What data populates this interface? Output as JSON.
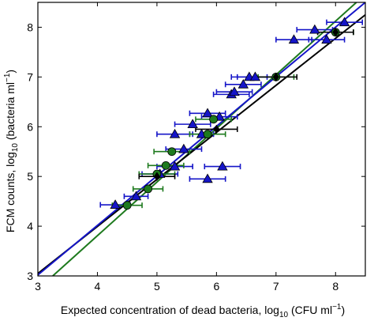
{
  "chart_data": {
    "type": "scatter",
    "xlabel": {
      "main": "Expected concentration of dead bacteria, log",
      "sub": "10",
      "tail": " (CFU ml",
      "sup": "−1",
      "end": ")"
    },
    "ylabel": {
      "main": "FCM counts, log",
      "sub": "10",
      "tail": " (bacteria ml",
      "sup": "−1",
      "end": ")"
    },
    "xlim": [
      3,
      8.5
    ],
    "ylim": [
      3,
      8.5
    ],
    "x_ticks": [
      "3",
      "4",
      "5",
      "6",
      "7",
      "8"
    ],
    "y_ticks": [
      "3",
      "4",
      "5",
      "6",
      "7",
      "8"
    ],
    "grid": false,
    "series": [
      {
        "marker": "triangle",
        "color": "#1515c8",
        "points": [
          {
            "x": 4.3,
            "y": 4.43,
            "xerr": 0.25
          },
          {
            "x": 4.65,
            "y": 4.6,
            "xerr": 0.2
          },
          {
            "x": 5.05,
            "y": 5.05,
            "xerr": 0.3
          },
          {
            "x": 5.3,
            "y": 5.2,
            "xerr": 0.3
          },
          {
            "x": 5.3,
            "y": 5.85,
            "xerr": 0.3
          },
          {
            "x": 5.45,
            "y": 5.55,
            "xerr": 0.3
          },
          {
            "x": 5.6,
            "y": 6.05,
            "xerr": 0.3
          },
          {
            "x": 5.75,
            "y": 5.85,
            "xerr": 0.2
          },
          {
            "x": 5.85,
            "y": 6.27,
            "xerr": 0.3
          },
          {
            "x": 5.85,
            "y": 4.95,
            "xerr": 0.3
          },
          {
            "x": 6.05,
            "y": 6.2,
            "xerr": 0.3
          },
          {
            "x": 6.1,
            "y": 5.2,
            "xerr": 0.3
          },
          {
            "x": 6.25,
            "y": 6.65,
            "xerr": 0.3
          },
          {
            "x": 6.3,
            "y": 6.7,
            "xerr": 0.3
          },
          {
            "x": 6.45,
            "y": 6.85,
            "xerr": 0.3
          },
          {
            "x": 6.55,
            "y": 7.0,
            "xerr": 0.3
          },
          {
            "x": 6.65,
            "y": 7.0,
            "xerr": 0.3
          },
          {
            "x": 7.3,
            "y": 7.75,
            "xerr": 0.3
          },
          {
            "x": 7.65,
            "y": 7.95,
            "xerr": 0.3
          },
          {
            "x": 7.85,
            "y": 7.75,
            "xerr": 0.3
          },
          {
            "x": 8.15,
            "y": 8.1,
            "xerr": 0.3
          }
        ]
      },
      {
        "marker": "circle",
        "color": "#1e7a1e",
        "points": [
          {
            "x": 4.5,
            "y": 4.42,
            "xerr": 0.25
          },
          {
            "x": 4.85,
            "y": 4.75,
            "xerr": 0.25
          },
          {
            "x": 5.0,
            "y": 5.05,
            "xerr": 0.3
          },
          {
            "x": 5.15,
            "y": 5.22,
            "xerr": 0.3
          },
          {
            "x": 5.25,
            "y": 5.5,
            "xerr": 0.3
          },
          {
            "x": 5.85,
            "y": 5.85,
            "xerr": 0.3
          },
          {
            "x": 5.95,
            "y": 6.15,
            "xerr": 0.3
          },
          {
            "x": 7.0,
            "y": 7.0,
            "xerr": 0.3
          },
          {
            "x": 8.0,
            "y": 7.9,
            "xerr": 0.3
          }
        ]
      },
      {
        "marker": "diamond",
        "color": "#000000",
        "points": [
          {
            "x": 5.0,
            "y": 5.0,
            "xerr": 0.3
          },
          {
            "x": 6.0,
            "y": 5.95,
            "xerr": 0.35
          },
          {
            "x": 7.0,
            "y": 7.0,
            "xerr": 0.35
          },
          {
            "x": 8.0,
            "y": 7.9,
            "xerr": 0.3
          }
        ]
      }
    ],
    "fit_lines": [
      {
        "color": "#1e7a1e",
        "x": [
          3.25,
          8.35
        ],
        "y": [
          3.0,
          8.5
        ]
      },
      {
        "color": "#000000",
        "x": [
          3.0,
          8.5
        ],
        "y": [
          3.05,
          8.25
        ]
      },
      {
        "color": "#1515c8",
        "x": [
          3.0,
          8.5
        ],
        "y": [
          3.02,
          8.5
        ]
      }
    ]
  }
}
